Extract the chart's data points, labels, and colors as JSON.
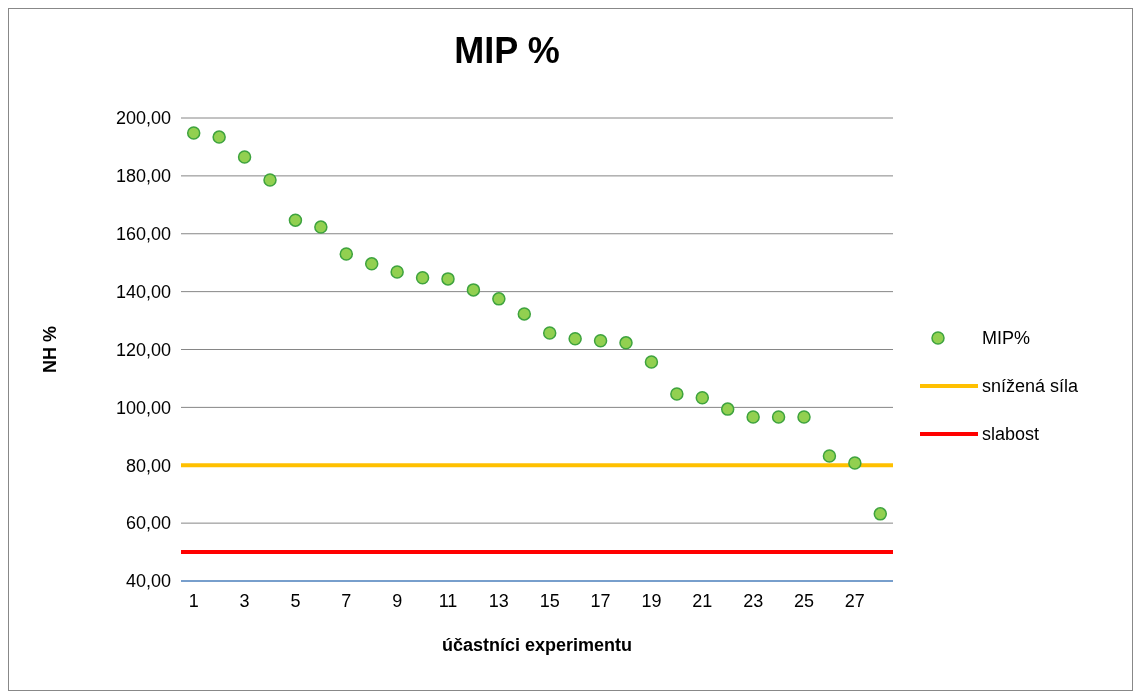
{
  "chart_data": {
    "type": "scatter",
    "title": "MIP %",
    "xlabel": "účastníci experimentu",
    "ylabel": "NH %",
    "xlim": [
      0.5,
      28.5
    ],
    "xticks": [
      1,
      3,
      5,
      7,
      9,
      11,
      13,
      15,
      17,
      19,
      21,
      23,
      25,
      27
    ],
    "ylim": [
      40,
      200
    ],
    "yticks": [
      {
        "value": 40,
        "label": "40,00"
      },
      {
        "value": 60,
        "label": "60,00"
      },
      {
        "value": 80,
        "label": "80,00"
      },
      {
        "value": 100,
        "label": "100,00"
      },
      {
        "value": 120,
        "label": "120,00"
      },
      {
        "value": 140,
        "label": "140,00"
      },
      {
        "value": 160,
        "label": "160,00"
      },
      {
        "value": 180,
        "label": "180,00"
      },
      {
        "value": 200,
        "label": "200,00"
      }
    ],
    "grid": "y",
    "legend": "right",
    "series": [
      {
        "name": "MIP%",
        "marker": "circle",
        "color": "#92d050",
        "x": [
          1,
          2,
          3,
          4,
          5,
          6,
          7,
          8,
          9,
          10,
          11,
          12,
          13,
          14,
          15,
          16,
          17,
          18,
          19,
          20,
          21,
          22,
          23,
          24,
          25,
          26,
          27,
          28
        ],
        "values": [
          194.8,
          193.4,
          186.5,
          178.6,
          164.7,
          162.3,
          153.0,
          149.6,
          146.8,
          144.8,
          144.4,
          140.6,
          137.5,
          132.3,
          125.7,
          123.7,
          123.0,
          122.3,
          115.7,
          104.6,
          103.3,
          99.4,
          96.7,
          96.7,
          96.7,
          83.2,
          80.8,
          63.2
        ]
      },
      {
        "name": "snížená síla",
        "type": "line",
        "marker": "none",
        "color": "#ffc000",
        "x": [
          0.5,
          28.5
        ],
        "values": [
          80,
          80
        ]
      },
      {
        "name": "slabost",
        "type": "line",
        "marker": "none",
        "color": "#ff0000",
        "x": [
          0.5,
          28.5
        ],
        "values": [
          50,
          50
        ]
      }
    ]
  }
}
